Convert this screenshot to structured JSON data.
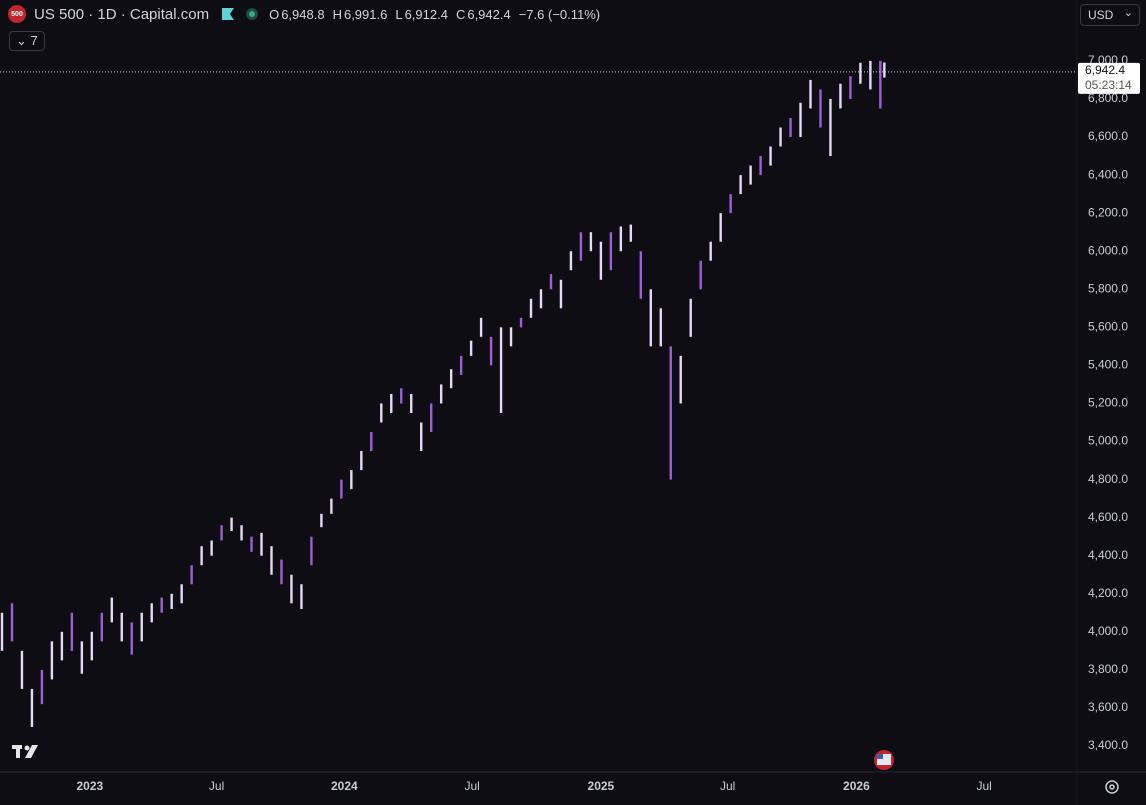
{
  "header": {
    "logo": "500",
    "symbol": "US 500 · 1D · Capital.com",
    "open_label": "O",
    "open": "6,948.8",
    "high_label": "H",
    "high": "6,991.6",
    "low_label": "L",
    "low": "6,912.4",
    "close_label": "C",
    "close": "6,942.4",
    "change": "−7.6 (−0.11%)",
    "indicators": "7",
    "currency": "USD"
  },
  "chart_data": {
    "type": "hilo",
    "color": "#e6d9f6",
    "accent_color": "#9c5fd6",
    "x": [
      0,
      1,
      2,
      3,
      4,
      5,
      6,
      7,
      8,
      9,
      10,
      11,
      12,
      13,
      14,
      15,
      16,
      17,
      18,
      19,
      20,
      21,
      22,
      23,
      24,
      25,
      26,
      27,
      28,
      29,
      30,
      31,
      32,
      33,
      34,
      35,
      36,
      37,
      38,
      39,
      40,
      41,
      42,
      43,
      44,
      45,
      46,
      47,
      48,
      49,
      50,
      51,
      52,
      53,
      54,
      55,
      56,
      57,
      58,
      59,
      60,
      61,
      62,
      63,
      64,
      65,
      66,
      67,
      68,
      69,
      70,
      71,
      72,
      73,
      74,
      75,
      76,
      77,
      78,
      79,
      80,
      81,
      82,
      83,
      84,
      85,
      86,
      87,
      88,
      88.4
    ],
    "low": [
      3900,
      3950,
      3700,
      3500,
      3620,
      3750,
      3850,
      3900,
      3780,
      3850,
      3950,
      4050,
      3950,
      3880,
      3950,
      4050,
      4100,
      4120,
      4150,
      4250,
      4350,
      4400,
      4480,
      4530,
      4480,
      4420,
      4400,
      4300,
      4250,
      4150,
      4120,
      4350,
      4550,
      4620,
      4700,
      4750,
      4850,
      4950,
      5100,
      5150,
      5200,
      5150,
      4950,
      5050,
      5200,
      5280,
      5350,
      5450,
      5550,
      5400,
      5150,
      5500,
      5600,
      5650,
      5700,
      5800,
      5700,
      5900,
      5950,
      6000,
      5850,
      5900,
      6000,
      6050,
      5750,
      5500,
      5500,
      4800,
      5200,
      5550,
      5800,
      5950,
      6050,
      6200,
      6300,
      6350,
      6400,
      6450,
      6550,
      6600,
      6600,
      6750,
      6650,
      6500,
      6750,
      6800,
      6880,
      6850,
      6750,
      6912.4
    ],
    "high": [
      4100,
      4150,
      3900,
      3700,
      3800,
      3950,
      4000,
      4100,
      3950,
      4000,
      4100,
      4180,
      4100,
      4050,
      4100,
      4150,
      4180,
      4200,
      4250,
      4350,
      4450,
      4480,
      4560,
      4600,
      4560,
      4500,
      4520,
      4450,
      4380,
      4300,
      4250,
      4500,
      4620,
      4700,
      4800,
      4850,
      4950,
      5050,
      5200,
      5250,
      5280,
      5250,
      5100,
      5200,
      5300,
      5380,
      5450,
      5530,
      5650,
      5550,
      5600,
      5600,
      5650,
      5750,
      5800,
      5880,
      5850,
      6000,
      6100,
      6100,
      6050,
      6100,
      6130,
      6140,
      6000,
      5800,
      5700,
      5500,
      5450,
      5750,
      5950,
      6050,
      6200,
      6300,
      6400,
      6450,
      6500,
      6550,
      6650,
      6700,
      6780,
      6900,
      6850,
      6800,
      6880,
      6920,
      6990,
      7000,
      7000,
      6991.6
    ],
    "xlim": [
      0,
      107.5
    ],
    "xticks": [
      {
        "value": 8.8,
        "label": "2023"
      },
      {
        "value": 21.5,
        "label": "Jul"
      },
      {
        "value": 34.3,
        "label": "2024"
      },
      {
        "value": 47.1,
        "label": "Jul"
      },
      {
        "value": 60,
        "label": "2025"
      },
      {
        "value": 72.7,
        "label": "Jul"
      },
      {
        "value": 85.6,
        "label": "2026"
      },
      {
        "value": 98.4,
        "label": "Jul"
      }
    ],
    "ylim": [
      3274,
      7320
    ],
    "yticks": [
      {
        "value": 3400,
        "label": "3,400.0"
      },
      {
        "value": 3600,
        "label": "3,600.0"
      },
      {
        "value": 3800,
        "label": "3,800.0"
      },
      {
        "value": 4000,
        "label": "4,000.0"
      },
      {
        "value": 4200,
        "label": "4,200.0"
      },
      {
        "value": 4400,
        "label": "4,400.0"
      },
      {
        "value": 4600,
        "label": "4,600.0"
      },
      {
        "value": 4800,
        "label": "4,800.0"
      },
      {
        "value": 5000,
        "label": "5,000.0"
      },
      {
        "value": 5200,
        "label": "5,200.0"
      },
      {
        "value": 5400,
        "label": "5,400.0"
      },
      {
        "value": 5600,
        "label": "5,600.0"
      },
      {
        "value": 5800,
        "label": "5,800.0"
      },
      {
        "value": 6000,
        "label": "6,000.0"
      },
      {
        "value": 6200,
        "label": "6,200.0"
      },
      {
        "value": 6400,
        "label": "6,400.0"
      },
      {
        "value": 6600,
        "label": "6,600.0"
      },
      {
        "value": 6800,
        "label": "6,800.0"
      },
      {
        "value": 7000,
        "label": "7,000.0"
      }
    ],
    "grid": false,
    "last_price": {
      "value": 6942.4,
      "label": "6,942.4"
    },
    "countdown": "05:23:14"
  }
}
